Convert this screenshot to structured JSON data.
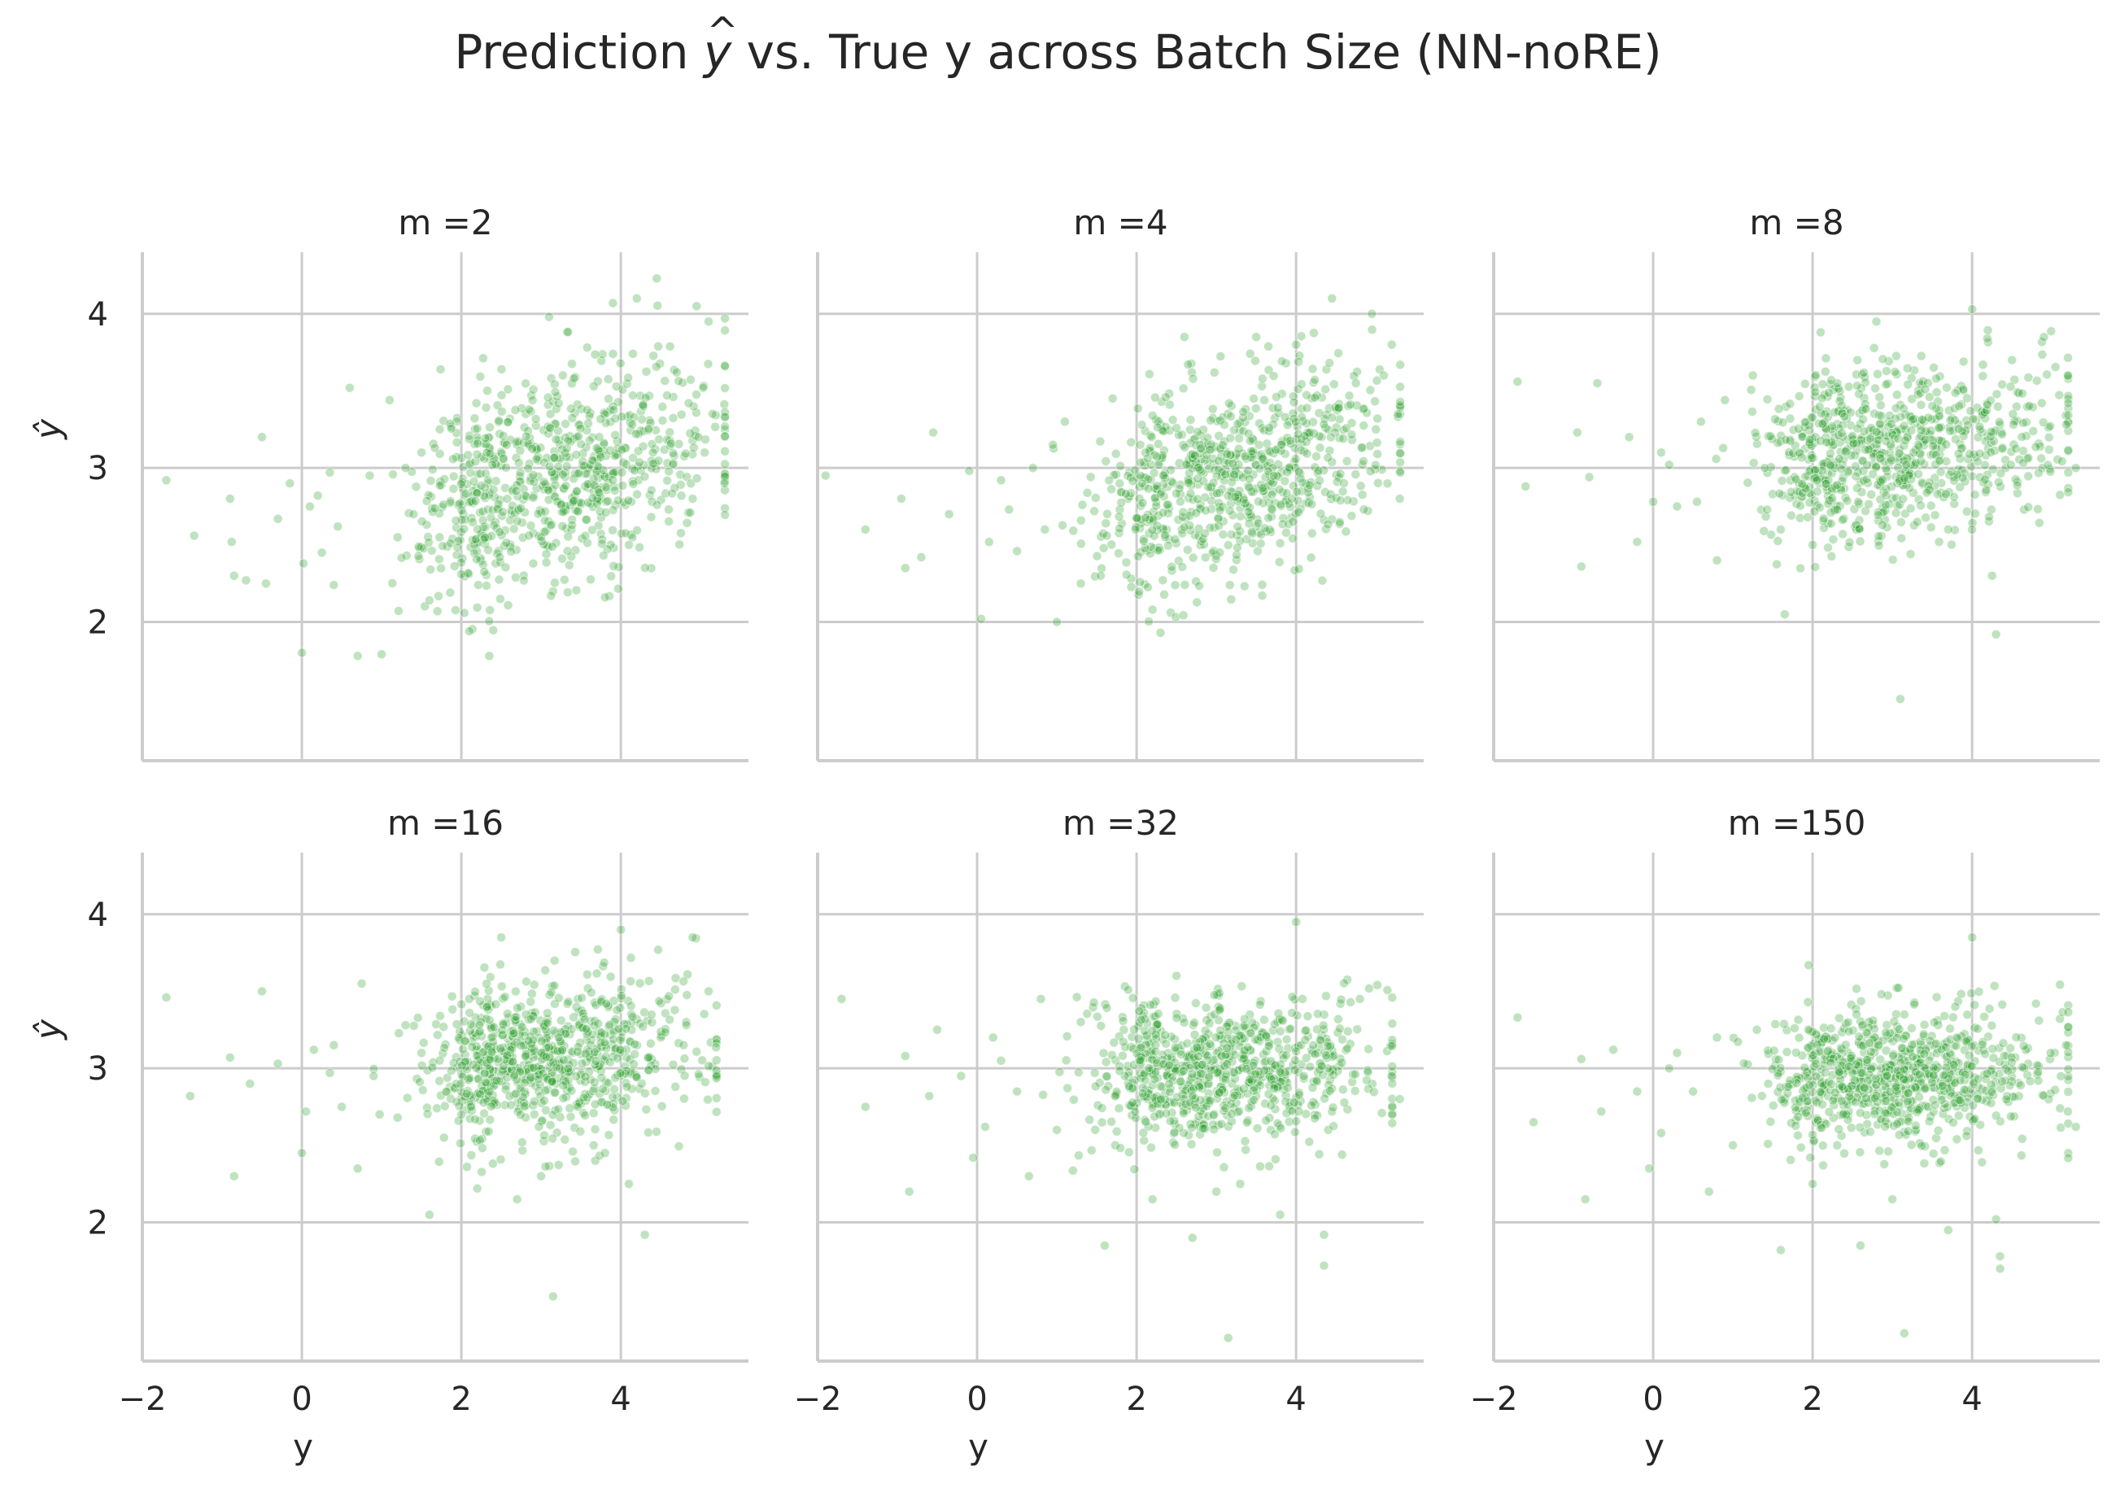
{
  "title": {
    "prefix": "Prediction ",
    "symbol": "y",
    "suffix": " vs. True y across Batch Size (NN-noRE)"
  },
  "chart_data": {
    "type": "scatter",
    "layout": "2x3 facet grid, shared axes",
    "marker_color": "#2ca02c",
    "marker_alpha": 0.3,
    "grid": true,
    "xlabel": "y",
    "ylabel": "ŷ",
    "xlim": [
      -2,
      5.6
    ],
    "ylim": [
      1.1,
      4.4
    ],
    "xticks": [
      -2,
      0,
      2,
      4
    ],
    "xtick_labels": [
      "−2",
      "0",
      "2",
      "4"
    ],
    "yticks": [
      2,
      3,
      4
    ],
    "ytick_labels": [
      "2",
      "3",
      "4"
    ],
    "panels": [
      {
        "title": "m =2",
        "points": [
          [
            -1.7,
            2.92
          ],
          [
            -1.35,
            2.56
          ],
          [
            -0.9,
            2.8
          ],
          [
            -0.88,
            2.52
          ],
          [
            -0.85,
            2.3
          ],
          [
            -0.7,
            2.27
          ],
          [
            -0.5,
            3.2
          ],
          [
            -0.45,
            2.25
          ],
          [
            -0.3,
            2.67
          ],
          [
            -0.15,
            2.9
          ],
          [
            0.0,
            1.8
          ],
          [
            0.02,
            2.38
          ],
          [
            0.1,
            2.75
          ],
          [
            0.2,
            2.82
          ],
          [
            0.35,
            2.97
          ],
          [
            0.4,
            2.24
          ],
          [
            0.45,
            2.62
          ],
          [
            0.6,
            3.52
          ],
          [
            0.7,
            1.78
          ],
          [
            1.0,
            1.79
          ],
          [
            1.1,
            3.44
          ],
          [
            1.4,
            2.7
          ],
          [
            1.6,
            2.14
          ],
          [
            1.7,
            2.07
          ],
          [
            2.1,
            1.94
          ],
          [
            2.35,
            1.78
          ],
          [
            3.1,
            3.98
          ],
          [
            3.45,
            2.85
          ],
          [
            3.9,
            4.07
          ],
          [
            4.2,
            4.1
          ],
          [
            4.45,
            4.23
          ],
          [
            4.95,
            4.05
          ],
          [
            5.1,
            3.95
          ],
          [
            5.15,
            3.35
          ],
          [
            5.3,
            2.9
          ],
          [
            4.9,
            2.8
          ],
          [
            4.85,
            3.42
          ],
          [
            4.6,
            2.73
          ],
          [
            4.7,
            3.62
          ],
          [
            1.2,
            2.55
          ],
          [
            1.5,
            3.1
          ],
          [
            0.85,
            2.95
          ],
          [
            0.25,
            2.45
          ],
          [
            1.3,
            3.0
          ],
          [
            5.05,
            3.1
          ]
        ],
        "cloud": {
          "x_mean": 3.1,
          "x_sd": 1.05,
          "y_mean": 2.95,
          "y_sd": 0.38,
          "corr": 0.42,
          "n": 780,
          "seed": 11
        }
      },
      {
        "title": "m =4",
        "points": [
          [
            -1.9,
            2.95
          ],
          [
            -1.4,
            2.6
          ],
          [
            -0.95,
            2.8
          ],
          [
            -0.9,
            2.35
          ],
          [
            -0.7,
            2.42
          ],
          [
            -0.55,
            3.23
          ],
          [
            -0.35,
            2.7
          ],
          [
            -0.1,
            2.98
          ],
          [
            0.05,
            2.02
          ],
          [
            0.15,
            2.52
          ],
          [
            0.4,
            2.73
          ],
          [
            0.5,
            2.46
          ],
          [
            0.7,
            3.0
          ],
          [
            0.95,
            3.15
          ],
          [
            1.0,
            2.0
          ],
          [
            1.3,
            2.25
          ],
          [
            1.55,
            2.3
          ],
          [
            2.2,
            2.08
          ],
          [
            2.3,
            1.93
          ],
          [
            2.6,
            3.85
          ],
          [
            3.5,
            3.85
          ],
          [
            4.0,
            3.8
          ],
          [
            4.45,
            4.1
          ],
          [
            4.95,
            4.0
          ],
          [
            5.1,
            3.6
          ],
          [
            5.3,
            2.8
          ],
          [
            5.2,
            3.8
          ],
          [
            4.85,
            2.73
          ],
          [
            4.6,
            2.9
          ],
          [
            1.1,
            3.3
          ],
          [
            0.85,
            2.6
          ],
          [
            0.3,
            2.92
          ],
          [
            1.7,
            3.45
          ],
          [
            5.0,
            3.25
          ],
          [
            4.75,
            3.55
          ]
        ],
        "cloud": {
          "x_mean": 3.1,
          "x_sd": 1.05,
          "y_mean": 2.92,
          "y_sd": 0.34,
          "corr": 0.4,
          "n": 760,
          "seed": 23
        }
      },
      {
        "title": "m =8",
        "points": [
          [
            -1.7,
            3.56
          ],
          [
            -1.6,
            2.88
          ],
          [
            -0.95,
            3.23
          ],
          [
            -0.9,
            2.36
          ],
          [
            -0.8,
            2.94
          ],
          [
            -0.7,
            3.55
          ],
          [
            -0.3,
            3.2
          ],
          [
            -0.2,
            2.52
          ],
          [
            0.0,
            2.78
          ],
          [
            0.2,
            3.02
          ],
          [
            0.3,
            2.75
          ],
          [
            0.55,
            2.78
          ],
          [
            0.8,
            2.4
          ],
          [
            0.9,
            3.44
          ],
          [
            1.25,
            3.6
          ],
          [
            1.65,
            2.05
          ],
          [
            2.0,
            2.5
          ],
          [
            2.1,
            3.88
          ],
          [
            2.8,
            3.95
          ],
          [
            3.1,
            1.5
          ],
          [
            3.7,
            2.6
          ],
          [
            4.0,
            4.03
          ],
          [
            4.25,
            2.3
          ],
          [
            4.3,
            1.92
          ],
          [
            4.5,
            3.7
          ],
          [
            5.2,
            3.6
          ],
          [
            5.3,
            3.0
          ],
          [
            4.9,
            3.85
          ],
          [
            1.4,
            3.0
          ],
          [
            0.6,
            3.3
          ],
          [
            0.1,
            3.1
          ],
          [
            1.6,
            2.6
          ]
        ],
        "cloud": {
          "x_mean": 3.0,
          "x_sd": 1.05,
          "y_mean": 3.12,
          "y_sd": 0.28,
          "corr": 0.18,
          "n": 790,
          "seed": 37
        }
      },
      {
        "title": "m =16",
        "points": [
          [
            -1.7,
            3.46
          ],
          [
            -1.4,
            2.82
          ],
          [
            -0.85,
            2.3
          ],
          [
            -0.9,
            3.07
          ],
          [
            -0.65,
            2.9
          ],
          [
            -0.5,
            3.5
          ],
          [
            -0.3,
            3.03
          ],
          [
            0.0,
            2.45
          ],
          [
            0.05,
            2.72
          ],
          [
            0.15,
            3.12
          ],
          [
            0.35,
            2.97
          ],
          [
            0.5,
            2.75
          ],
          [
            0.7,
            2.35
          ],
          [
            0.75,
            3.55
          ],
          [
            1.2,
            2.68
          ],
          [
            1.3,
            3.28
          ],
          [
            1.6,
            2.05
          ],
          [
            2.0,
            2.7
          ],
          [
            2.1,
            3.45
          ],
          [
            2.2,
            2.22
          ],
          [
            2.5,
            3.85
          ],
          [
            2.7,
            2.15
          ],
          [
            3.0,
            2.3
          ],
          [
            3.15,
            1.52
          ],
          [
            3.8,
            2.45
          ],
          [
            4.0,
            3.9
          ],
          [
            4.3,
            1.92
          ],
          [
            4.1,
            2.25
          ],
          [
            5.1,
            3.5
          ],
          [
            5.2,
            2.95
          ],
          [
            4.9,
            3.85
          ],
          [
            1.5,
            3.1
          ],
          [
            0.9,
            2.95
          ],
          [
            0.4,
            3.15
          ]
        ],
        "cloud": {
          "x_mean": 3.1,
          "x_sd": 1.0,
          "y_mean": 3.05,
          "y_sd": 0.27,
          "corr": 0.22,
          "n": 800,
          "seed": 53
        }
      },
      {
        "title": "m =32",
        "points": [
          [
            -1.7,
            3.45
          ],
          [
            -1.4,
            2.75
          ],
          [
            -0.9,
            3.08
          ],
          [
            -0.85,
            2.2
          ],
          [
            -0.6,
            2.82
          ],
          [
            -0.5,
            3.25
          ],
          [
            -0.2,
            2.95
          ],
          [
            -0.05,
            2.42
          ],
          [
            0.1,
            2.62
          ],
          [
            0.3,
            3.05
          ],
          [
            0.5,
            2.85
          ],
          [
            0.65,
            2.3
          ],
          [
            0.8,
            3.45
          ],
          [
            1.0,
            2.6
          ],
          [
            1.6,
            1.85
          ],
          [
            2.2,
            2.15
          ],
          [
            2.5,
            3.6
          ],
          [
            2.7,
            1.9
          ],
          [
            3.0,
            2.2
          ],
          [
            3.15,
            1.25
          ],
          [
            3.3,
            2.25
          ],
          [
            3.8,
            2.05
          ],
          [
            4.0,
            3.95
          ],
          [
            4.35,
            1.72
          ],
          [
            4.35,
            1.92
          ],
          [
            4.8,
            3.45
          ],
          [
            5.2,
            2.95
          ],
          [
            5.3,
            2.8
          ],
          [
            1.3,
            3.3
          ],
          [
            0.2,
            3.2
          ]
        ],
        "cloud": {
          "x_mean": 3.0,
          "x_sd": 1.05,
          "y_mean": 2.98,
          "y_sd": 0.24,
          "corr": 0.05,
          "n": 800,
          "seed": 71
        }
      },
      {
        "title": "m =150",
        "points": [
          [
            -1.7,
            3.33
          ],
          [
            -1.5,
            2.65
          ],
          [
            -0.9,
            3.06
          ],
          [
            -0.85,
            2.15
          ],
          [
            -0.65,
            2.72
          ],
          [
            -0.5,
            3.12
          ],
          [
            -0.2,
            2.85
          ],
          [
            -0.05,
            2.35
          ],
          [
            0.1,
            2.58
          ],
          [
            0.3,
            3.1
          ],
          [
            0.5,
            2.85
          ],
          [
            0.7,
            2.2
          ],
          [
            0.8,
            3.2
          ],
          [
            1.0,
            2.5
          ],
          [
            1.6,
            1.82
          ],
          [
            1.95,
            3.67
          ],
          [
            2.0,
            2.25
          ],
          [
            2.55,
            3.35
          ],
          [
            2.6,
            1.85
          ],
          [
            3.0,
            2.15
          ],
          [
            3.15,
            1.28
          ],
          [
            3.7,
            1.95
          ],
          [
            4.0,
            3.85
          ],
          [
            4.3,
            2.02
          ],
          [
            4.35,
            1.78
          ],
          [
            4.35,
            1.7
          ],
          [
            4.8,
            3.42
          ],
          [
            5.2,
            2.72
          ],
          [
            5.3,
            2.62
          ],
          [
            1.3,
            3.25
          ],
          [
            0.2,
            3.0
          ]
        ],
        "cloud": {
          "x_mean": 3.0,
          "x_sd": 1.05,
          "y_mean": 2.95,
          "y_sd": 0.22,
          "corr": 0.05,
          "n": 820,
          "seed": 97
        }
      }
    ]
  }
}
